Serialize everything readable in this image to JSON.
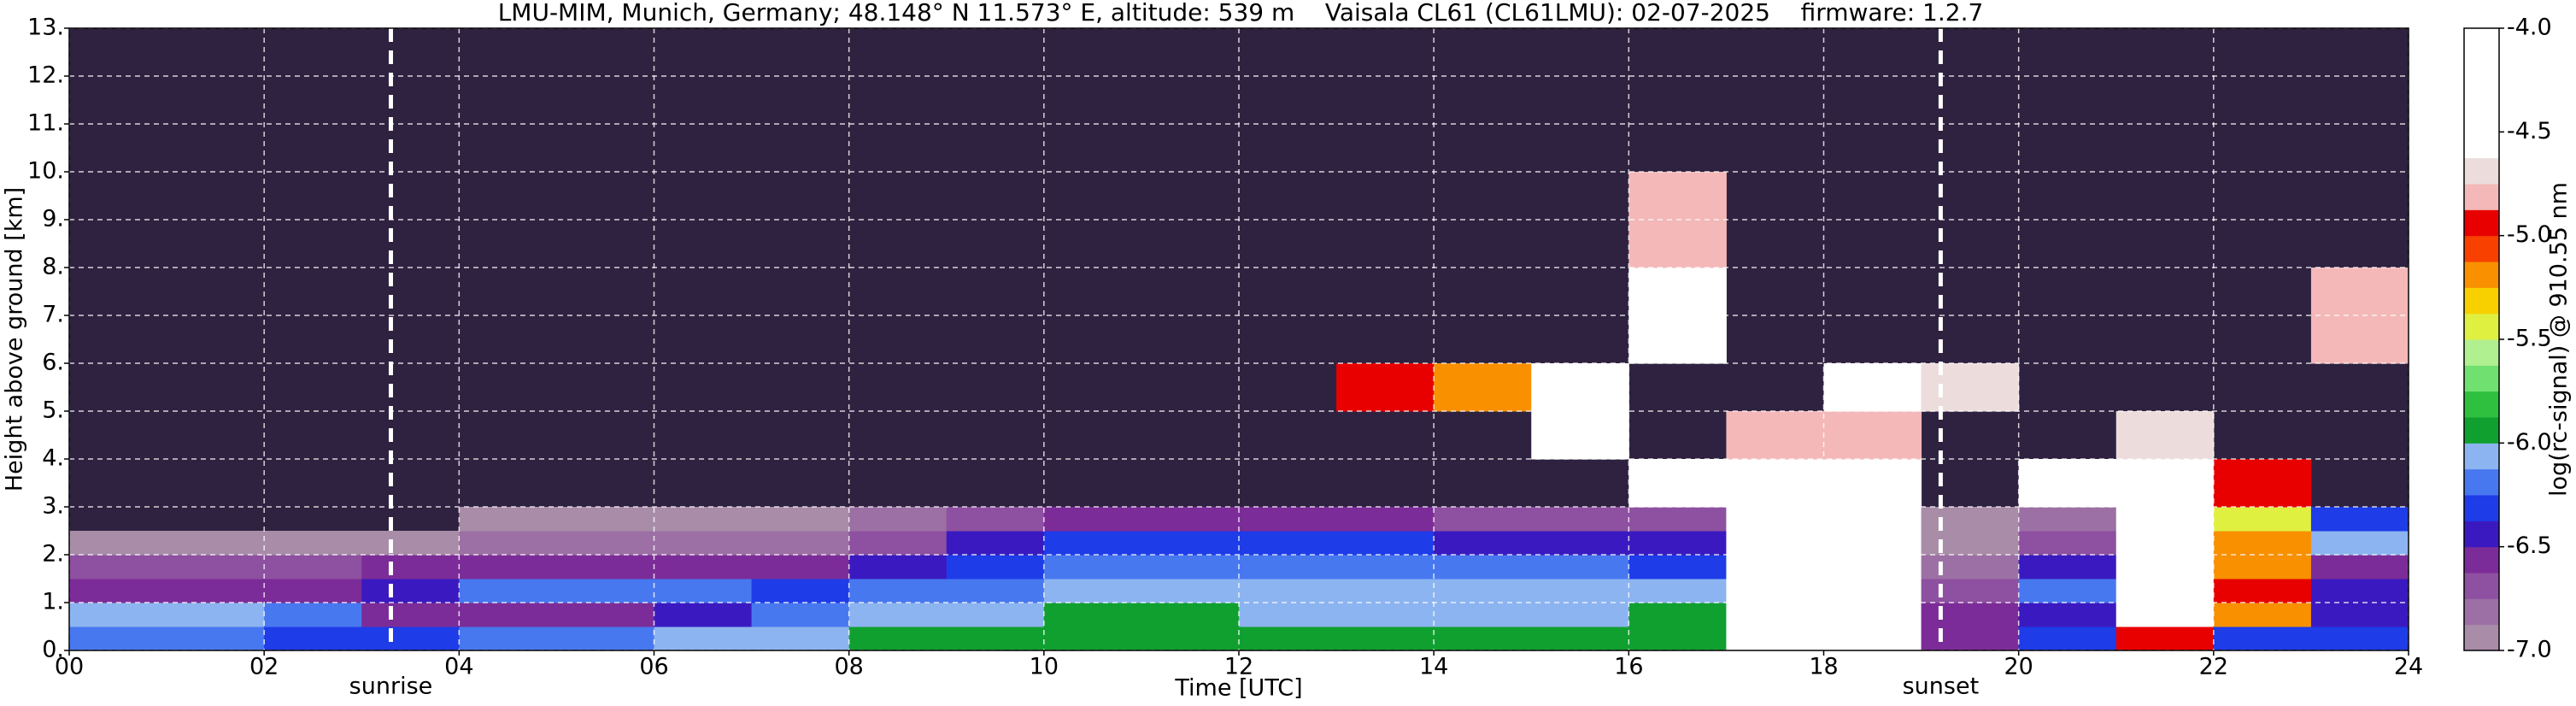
{
  "chart_data": {
    "type": "heatmap",
    "title": "LMU-MIM, Munich, Germany; 48.148° N 11.573° E, altitude: 539 m    Vaisala CL61 (CL61LMU): 02-07-2025    firmware: 1.2.7",
    "xlabel": "Time [UTC]",
    "ylabel": "Height above ground [km]",
    "xlim": [
      0,
      24
    ],
    "ylim": [
      0,
      13
    ],
    "xticks": [
      {
        "value": 0,
        "label": "00"
      },
      {
        "value": 2,
        "label": "02"
      },
      {
        "value": 4,
        "label": "04"
      },
      {
        "value": 6,
        "label": "06"
      },
      {
        "value": 8,
        "label": "08"
      },
      10,
      12,
      14,
      16,
      18,
      20,
      22,
      24
    ],
    "yticks": [
      {
        "value": 0,
        "label": "0."
      },
      {
        "value": 1,
        "label": "1."
      },
      {
        "value": 2,
        "label": "2."
      },
      {
        "value": 3,
        "label": "3."
      },
      {
        "value": 4,
        "label": "4."
      },
      {
        "value": 5,
        "label": "5."
      },
      {
        "value": 6,
        "label": "6."
      },
      {
        "value": 7,
        "label": "7."
      },
      {
        "value": 8,
        "label": "8."
      },
      {
        "value": 9,
        "label": "9."
      },
      {
        "value": 10,
        "label": "10."
      },
      {
        "value": 11,
        "label": "11."
      },
      {
        "value": 12,
        "label": "12."
      },
      {
        "value": 13,
        "label": "13."
      }
    ],
    "grid": true,
    "background": "#2e2240",
    "x_edges": [
      0,
      1,
      2,
      3,
      4,
      5,
      6,
      7,
      8,
      9,
      10,
      11,
      12,
      13,
      14,
      15,
      16,
      17,
      18,
      19,
      20,
      21,
      22,
      23,
      24
    ],
    "y_edges": [
      0,
      0.5,
      1,
      1.5,
      2,
      2.5,
      3,
      4,
      5,
      6,
      8,
      10,
      13
    ],
    "values": [
      [
        -6.2,
        -6.2,
        -6.3,
        -6.3,
        -6.2,
        -6.2,
        -6.1,
        -6.1,
        -6.0,
        -5.9,
        -5.9,
        -5.9,
        -5.9,
        -5.9,
        -5.9,
        -5.9,
        -5.9,
        -4.2,
        -4.2,
        -6.6,
        -6.3,
        -5.0,
        -6.3,
        -6.3
      ],
      [
        -6.1,
        -6.1,
        -6.2,
        -6.6,
        -6.6,
        -6.6,
        -6.4,
        -6.2,
        -6.1,
        -6.1,
        -6.0,
        -6.0,
        -6.1,
        -6.1,
        -6.1,
        -6.1,
        -6.0,
        -4.2,
        -4.2,
        -6.6,
        -6.4,
        -4.5,
        -5.2,
        -6.4
      ],
      [
        -6.6,
        -6.6,
        -6.6,
        -6.4,
        -6.2,
        -6.2,
        -6.2,
        -6.3,
        -6.2,
        -6.2,
        -6.1,
        -6.1,
        -6.1,
        -6.1,
        -6.1,
        -6.1,
        -6.1,
        -4.2,
        -4.2,
        -6.7,
        -6.2,
        -4.3,
        -5.0,
        -6.5
      ],
      [
        -6.7,
        -6.7,
        -6.7,
        -6.6,
        -6.6,
        -6.6,
        -6.6,
        -6.6,
        -6.4,
        -6.3,
        -6.2,
        -6.2,
        -6.2,
        -6.2,
        -6.2,
        -6.2,
        -6.3,
        -4.2,
        -4.2,
        -6.8,
        -6.5,
        -4.3,
        -5.2,
        -6.6
      ],
      [
        -6.9,
        -6.9,
        -6.9,
        -6.9,
        -6.8,
        -6.8,
        -6.8,
        -6.8,
        -6.7,
        -6.4,
        -6.3,
        -6.3,
        -6.3,
        -6.3,
        -6.4,
        -6.4,
        -6.4,
        -4.2,
        -4.2,
        -6.9,
        -6.7,
        -4.3,
        -5.2,
        -6.1
      ],
      [
        null,
        null,
        null,
        null,
        -6.9,
        -6.9,
        -6.9,
        -6.9,
        -6.8,
        -6.7,
        -6.6,
        -6.6,
        -6.6,
        -6.6,
        -6.7,
        -6.7,
        -6.7,
        -4.2,
        -4.2,
        -6.9,
        -6.8,
        -4.4,
        -5.4,
        -6.3
      ],
      [
        null,
        null,
        null,
        null,
        null,
        null,
        null,
        null,
        null,
        null,
        null,
        null,
        null,
        null,
        null,
        null,
        -4.5,
        -4.3,
        -4.6,
        null,
        -4.6,
        -4.4,
        -5.0,
        null
      ],
      [
        null,
        null,
        null,
        null,
        null,
        null,
        null,
        null,
        null,
        null,
        null,
        null,
        null,
        null,
        null,
        -4.6,
        null,
        -4.8,
        -4.8,
        null,
        null,
        -4.7,
        null,
        null
      ],
      [
        null,
        null,
        null,
        null,
        null,
        null,
        null,
        null,
        null,
        null,
        null,
        null,
        null,
        -5.0,
        -5.2,
        -4.6,
        null,
        null,
        -4.5,
        -4.7,
        null,
        null,
        null,
        null
      ],
      [
        null,
        null,
        null,
        null,
        null,
        null,
        null,
        null,
        null,
        null,
        null,
        null,
        null,
        null,
        null,
        null,
        -4.5,
        null,
        null,
        null,
        null,
        null,
        null,
        -4.8
      ],
      [
        null,
        null,
        null,
        null,
        null,
        null,
        null,
        null,
        null,
        null,
        null,
        null,
        null,
        null,
        null,
        null,
        -4.8,
        null,
        null,
        null,
        null,
        null,
        null,
        null
      ],
      [
        null,
        null,
        null,
        null,
        null,
        null,
        null,
        null,
        null,
        null,
        null,
        null,
        null,
        null,
        null,
        null,
        null,
        null,
        null,
        null,
        null,
        null,
        null,
        null
      ]
    ],
    "annotations": [
      {
        "text": "sunrise",
        "x": 3.3
      },
      {
        "text": "sunset",
        "x": 19.2
      }
    ],
    "colorbar": {
      "label": "log(rc-signal) @ 910.55 nm",
      "clim": [
        -7,
        -4
      ],
      "ticks": [
        {
          "value": -4,
          "label": "-4.0"
        },
        -4.5,
        {
          "value": -5,
          "label": "-5.0"
        },
        -5.5,
        {
          "value": -6,
          "label": "-6.0"
        },
        -6.5,
        {
          "value": -7,
          "label": "-7.0"
        }
      ],
      "colors": [
        "#a88ca8",
        "#9c70a4",
        "#8e50a0",
        "#7c2c98",
        "#3a1ac0",
        "#1e3ce8",
        "#4878f0",
        "#8cb4f0",
        "#10a030",
        "#30c040",
        "#70e070",
        "#b0f090",
        "#e0f040",
        "#f8d000",
        "#f89000",
        "#f84000",
        "#e80000",
        "#f4b8b8",
        "#ecdcdc",
        "#ffffff",
        "#ffffff",
        "#ffffff",
        "#ffffff",
        "#ffffff"
      ]
    }
  }
}
